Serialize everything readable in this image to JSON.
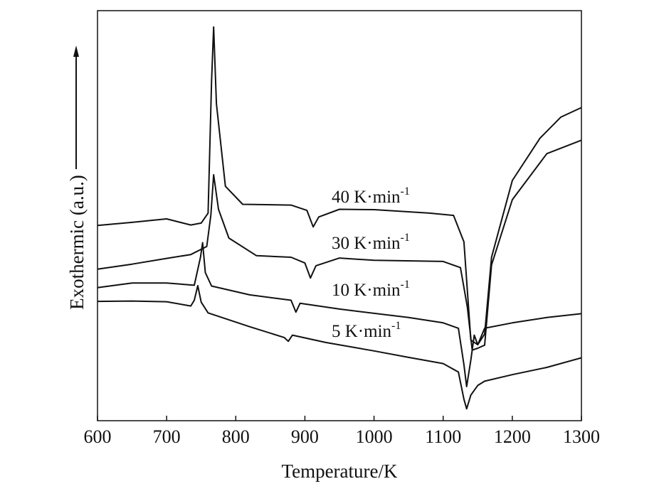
{
  "chart_data": {
    "type": "line",
    "xlabel": "Temperature/K",
    "ylabel": "Exothermic (a.u.)",
    "ylabel_arrow": "up",
    "xlim": [
      600,
      1300
    ],
    "ylim": [
      0,
      100
    ],
    "x_ticks": [
      600,
      700,
      800,
      900,
      1000,
      1100,
      1200,
      1300
    ],
    "y_ticks_shown": false,
    "grid": false,
    "series": [
      {
        "name": "40 K·min-1",
        "label": {
          "main": "40 K·min",
          "sup": "-1"
        },
        "points": [
          [
            600,
            48.3
          ],
          [
            650,
            49.1
          ],
          [
            700,
            50.0
          ],
          [
            735,
            48.4
          ],
          [
            750,
            48.9
          ],
          [
            760,
            51.5
          ],
          [
            765,
            86.0
          ],
          [
            768,
            100.0
          ],
          [
            772,
            80.0
          ],
          [
            785,
            58.5
          ],
          [
            810,
            53.8
          ],
          [
            880,
            53.6
          ],
          [
            903,
            52.2
          ],
          [
            912,
            47.9
          ],
          [
            920,
            50.5
          ],
          [
            950,
            52.5
          ],
          [
            1000,
            52.4
          ],
          [
            1080,
            51.5
          ],
          [
            1115,
            50.9
          ],
          [
            1130,
            44.0
          ],
          [
            1140,
            18.4
          ],
          [
            1150,
            17.2
          ],
          [
            1160,
            20.0
          ],
          [
            1170,
            40.0
          ],
          [
            1200,
            60.0
          ],
          [
            1240,
            71.0
          ],
          [
            1270,
            76.5
          ],
          [
            1300,
            79.0
          ]
        ]
      },
      {
        "name": "30 K·min-1",
        "label": {
          "main": "30 K·min",
          "sup": "-1"
        },
        "points": [
          [
            600,
            36.9
          ],
          [
            650,
            38.2
          ],
          [
            700,
            39.7
          ],
          [
            735,
            40.7
          ],
          [
            758,
            42.8
          ],
          [
            764,
            51.0
          ],
          [
            768,
            61.5
          ],
          [
            775,
            52.5
          ],
          [
            790,
            45.0
          ],
          [
            830,
            40.4
          ],
          [
            880,
            40.0
          ],
          [
            900,
            38.5
          ],
          [
            908,
            34.6
          ],
          [
            916,
            37.8
          ],
          [
            950,
            39.8
          ],
          [
            1000,
            39.2
          ],
          [
            1100,
            38.9
          ],
          [
            1125,
            37.3
          ],
          [
            1135,
            27.0
          ],
          [
            1142,
            15.8
          ],
          [
            1150,
            16.3
          ],
          [
            1160,
            17.1
          ],
          [
            1170,
            38.0
          ],
          [
            1200,
            55.0
          ],
          [
            1250,
            67.0
          ],
          [
            1300,
            70.5
          ]
        ]
      },
      {
        "name": "10 K·min-1",
        "label": {
          "main": "10 K·min",
          "sup": "-1"
        },
        "points": [
          [
            600,
            32.1
          ],
          [
            650,
            33.3
          ],
          [
            700,
            33.3
          ],
          [
            740,
            32.7
          ],
          [
            749,
            40.0
          ],
          [
            752,
            43.8
          ],
          [
            756,
            36.0
          ],
          [
            765,
            32.5
          ],
          [
            820,
            30.2
          ],
          [
            880,
            28.8
          ],
          [
            887,
            25.7
          ],
          [
            893,
            28.0
          ],
          [
            950,
            26.5
          ],
          [
            1050,
            24.3
          ],
          [
            1100,
            22.9
          ],
          [
            1122,
            21.5
          ],
          [
            1130,
            12.0
          ],
          [
            1134,
            6.3
          ],
          [
            1140,
            13.2
          ],
          [
            1145,
            19.7
          ],
          [
            1150,
            17.2
          ],
          [
            1160,
            21.5
          ],
          [
            1200,
            22.9
          ],
          [
            1250,
            24.3
          ],
          [
            1300,
            25.3
          ]
        ]
      },
      {
        "name": "5 K·min-1",
        "label": {
          "main": "5 K·min",
          "sup": "-1"
        },
        "points": [
          [
            600,
            28.5
          ],
          [
            650,
            28.6
          ],
          [
            700,
            28.4
          ],
          [
            735,
            27.3
          ],
          [
            740,
            28.8
          ],
          [
            745,
            32.6
          ],
          [
            750,
            28.3
          ],
          [
            760,
            25.5
          ],
          [
            820,
            21.9
          ],
          [
            870,
            19.1
          ],
          [
            876,
            18.1
          ],
          [
            882,
            19.7
          ],
          [
            930,
            17.8
          ],
          [
            1000,
            15.6
          ],
          [
            1050,
            13.9
          ],
          [
            1100,
            12.3
          ],
          [
            1122,
            10.1
          ],
          [
            1130,
            3.0
          ],
          [
            1134,
            0.5
          ],
          [
            1140,
            4.1
          ],
          [
            1150,
            6.6
          ],
          [
            1160,
            7.7
          ],
          [
            1200,
            9.4
          ],
          [
            1250,
            11.3
          ],
          [
            1300,
            13.8
          ]
        ]
      }
    ]
  }
}
